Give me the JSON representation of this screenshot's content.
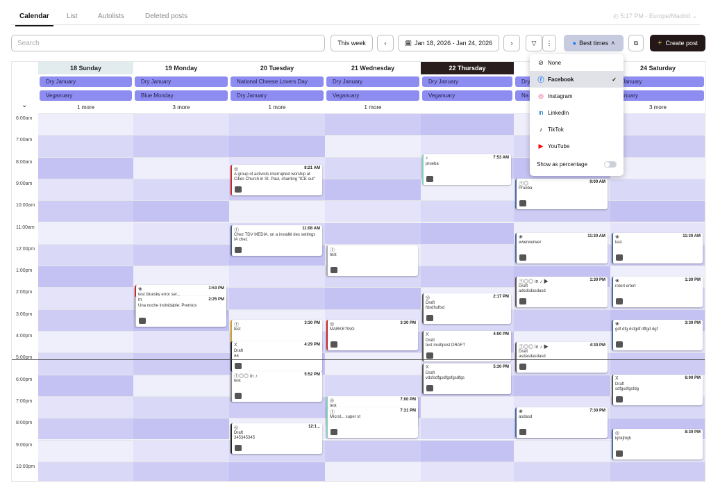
{
  "tabs": {
    "calendar": "Calendar",
    "list": "List",
    "autolists": "Autolists",
    "deleted": "Deleted posts",
    "timezone": "◴ 5:17 PM - Europe/Madrid ⌄"
  },
  "toolbar": {
    "search_placeholder": "Search",
    "this_week": "This week",
    "date_range": "Jan 18, 2026 - Jan 24, 2026",
    "best_times": "Best times",
    "create_post": "Create post",
    "prev": "‹",
    "next": "›",
    "filter": "▽",
    "more": "⋮",
    "calendar_icon": "🗓",
    "chevron_up": "˄",
    "plus": "+",
    "copy": "⧉"
  },
  "days": [
    {
      "label": "18 Sunday",
      "chips": [
        "Dry January",
        "Veganuary"
      ],
      "more": "1 more"
    },
    {
      "label": "19 Monday",
      "chips": [
        "Dry January",
        "Blue Monday"
      ],
      "more": "3 more"
    },
    {
      "label": "20 Tuesday",
      "chips": [
        "National Cheese Lovers Day",
        "Dry January"
      ],
      "more": "1 more"
    },
    {
      "label": "21 Wednesday",
      "chips": [
        "Dry January",
        "Veganuary"
      ],
      "more": "1 more"
    },
    {
      "label": "22 Thursday",
      "chips": [
        "Dry January",
        "Veganuary"
      ],
      "more": ""
    },
    {
      "label": "",
      "chips": [
        "Dry",
        "Na"
      ],
      "more": ""
    },
    {
      "label": "24 Saturday",
      "chips": [
        "y January",
        "ganuary"
      ],
      "more": "3 more"
    }
  ],
  "collapse_icon": "⌄",
  "hours": [
    "6:00am",
    "7:00am",
    "8:00am",
    "9:00am",
    "10:00am",
    "11:00am",
    "12:00pm",
    "1:00pm",
    "2:00pm",
    "3:00pm",
    "4:00pm",
    "5:00pm",
    "6:00pm",
    "7:00pm",
    "8:00pm",
    "9:00pm",
    "10:00pm"
  ],
  "dropdown": {
    "options": [
      {
        "icon": "⊘",
        "label": "None",
        "color": "#111"
      },
      {
        "icon": "ⓕ",
        "label": "Facebook",
        "color": "#1877f2"
      },
      {
        "icon": "◎",
        "label": "Instagram",
        "color": "#e1306c"
      },
      {
        "icon": "in",
        "label": "LinkedIn",
        "color": "#0a66c2"
      },
      {
        "icon": "♪",
        "label": "TikTok",
        "color": "#111"
      },
      {
        "icon": "▶",
        "label": "YouTube",
        "color": "#ff0000"
      }
    ],
    "selected": "Facebook",
    "check": "✓",
    "show_percentage": "Show as percentage"
  },
  "posts": [
    {
      "day": 2,
      "time": "8:21 AM",
      "icon": "◎",
      "text": "A group of activists interrupted worship at Cities Church in St. Paul, chanting \"ICE out\"",
      "color": "#c62828"
    },
    {
      "day": 2,
      "time": "11:08 AM",
      "icon": "ⓕ",
      "text": "Chez TDV MEDIA, on a installé des settings IA chez",
      "color": "#4a5a7a"
    },
    {
      "day": 2,
      "time": "12:1...",
      "icon": "◎",
      "text": "Draft\n345345345",
      "color": "#222"
    },
    {
      "day": 2,
      "time": "3:30 PM",
      "icon": "ⓕ",
      "text": "test",
      "color": "#c9a227"
    },
    {
      "day": 2,
      "time": "4:29 PM",
      "icon": "X",
      "text": "Draft\naa",
      "color": "#222"
    },
    {
      "day": 2,
      "time": "5:52 PM",
      "icon": "ⓕ◎◎ in ♪",
      "text": "test",
      "color": "#888"
    },
    {
      "day": 1,
      "time": "1:53 PM",
      "icon": "❀",
      "text": "test bluesky error ser...",
      "color": "#c62828"
    },
    {
      "day": 1,
      "time": "2:25 PM",
      "icon": "in",
      "text": "Una noche inolvidable: Premios",
      "color": "#bbb"
    },
    {
      "day": 3,
      "time": "3:30 PM",
      "icon": "◎",
      "text": "MARKETING",
      "color": "#c62828"
    },
    {
      "day": 3,
      "time": "7:00 PM",
      "icon": "◎",
      "text": "test",
      "color": "#8ad0b8"
    },
    {
      "day": 3,
      "time": "7:31 PM",
      "icon": "ⓕ",
      "text": "Microl... super st",
      "color": "#8ad0b8"
    },
    {
      "day": 3,
      "time": "",
      "icon": "ⓕ",
      "text": "test",
      "color": "#aaa"
    },
    {
      "day": 4,
      "time": "7:53 AM",
      "icon": "♪",
      "text": "prueba",
      "color": "#8ad0b8"
    },
    {
      "day": 4,
      "time": "4:00 PM",
      "icon": "X",
      "text": "Draft\ntest multipost DRAFT",
      "color": "#555"
    },
    {
      "day": 4,
      "time": "5:30 PM",
      "icon": "X",
      "text": "Draft\nvdsfsdfgsdfgsfgsdfgs",
      "color": "#555"
    },
    {
      "day": 4,
      "time": "2:17 PM",
      "icon": "◎",
      "text": "Draft\nfdsdfsdfsd",
      "color": "#555"
    },
    {
      "day": 5,
      "time": "9:00 AM",
      "icon": "ⓕ◎",
      "text": "Prueba",
      "color": "#4a6a9a"
    },
    {
      "day": 5,
      "time": "11:30 AM",
      "icon": "❀",
      "text": "ewerwerwer",
      "color": "#4a6a9a"
    },
    {
      "day": 5,
      "time": "1:30 PM",
      "icon": "ⓕ◎◎ in ♪ ▶",
      "text": "Draft\nadsdsdasdasd",
      "color": "#555"
    },
    {
      "day": 5,
      "time": "4:30 PM",
      "icon": "ⓕ◎◎ in ♪ ▶",
      "text": "Draft\nasdasdasdasd",
      "color": "#555"
    },
    {
      "day": 5,
      "time": "7:30 PM",
      "icon": "❀",
      "text": "asdasd",
      "color": "#4a6a9a"
    },
    {
      "day": 6,
      "time": "11:30 AM",
      "icon": "❀",
      "text": "test",
      "color": "#4a6a9a"
    },
    {
      "day": 6,
      "time": "1:30 PM",
      "icon": "❀",
      "text": "rotert ertert",
      "color": "#4a6a9a"
    },
    {
      "day": 6,
      "time": "3:30 PM",
      "icon": "❀",
      "text": "gdf dfg dsfgdf dffgd dgf",
      "color": "#4a6a9a"
    },
    {
      "day": 6,
      "time": "6:00 PM",
      "icon": "X",
      "text": "Draft\nsdfgsdfgsfdg",
      "color": "#555"
    },
    {
      "day": 6,
      "time": "8:30 PM",
      "icon": "◎",
      "text": "kjhkjhkjh",
      "color": "#4a6a9a"
    }
  ],
  "now_marker": "5:00pm"
}
